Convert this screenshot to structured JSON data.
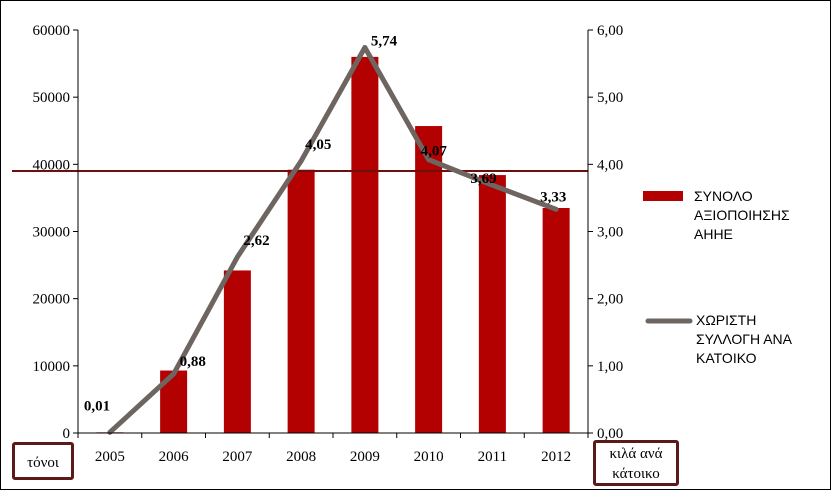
{
  "chart_data": {
    "type": "bar",
    "categories": [
      "2005",
      "2006",
      "2007",
      "2008",
      "2009",
      "2010",
      "2011",
      "2012"
    ],
    "series": [
      {
        "name": "ΣΥΝΟΛΟ ΑΞΙΟΠΟΙΗΣΗΣ ΑΗΗΕ",
        "type": "bar",
        "axis": "left",
        "color": "#b30000",
        "values": [
          100,
          9300,
          24200,
          39200,
          56000,
          45700,
          38400,
          33500
        ]
      },
      {
        "name": "ΧΩΡΙΣΤΗ ΣΥΛΛΟΓΗ ΑΝΑ ΚΑΤΟΙΚΟ",
        "type": "line",
        "axis": "right",
        "color": "#6e6460",
        "values": [
          0.01,
          0.88,
          2.62,
          4.05,
          5.74,
          4.07,
          3.69,
          3.33
        ],
        "labels": [
          "0,01",
          "0,88",
          "2,62",
          "4,05",
          "5,74",
          "4,07",
          "3,69",
          "3,33"
        ]
      }
    ],
    "left_axis": {
      "ylim": [
        0,
        60000
      ],
      "ticks": [
        "0",
        "10000",
        "20000",
        "30000",
        "40000",
        "50000",
        "60000"
      ],
      "unit_label": "τόνοι"
    },
    "right_axis": {
      "ylim": [
        0,
        6
      ],
      "ticks": [
        "0,00",
        "1,00",
        "2,00",
        "3,00",
        "4,00",
        "5,00",
        "6,00"
      ],
      "unit_label": [
        "κιλά ανά",
        "κάτοικο"
      ]
    },
    "reference_line": {
      "value": 39000,
      "axis": "left",
      "color": "#6b0f0f"
    },
    "legend": {
      "placement": "right",
      "items": [
        {
          "lines": [
            "ΣΥΝΟΛΟ",
            "ΑΞΙΟΠΟΙΗΣΗΣ",
            "ΑΗΗΕ"
          ],
          "kind": "bar"
        },
        {
          "lines": [
            "ΧΩΡΙΣΤΗ",
            "ΣΥΛΛΟΓΗ ΑΝΑ",
            "ΚΑΤΟΙΚΟ"
          ],
          "kind": "line"
        }
      ]
    },
    "grid": false
  }
}
